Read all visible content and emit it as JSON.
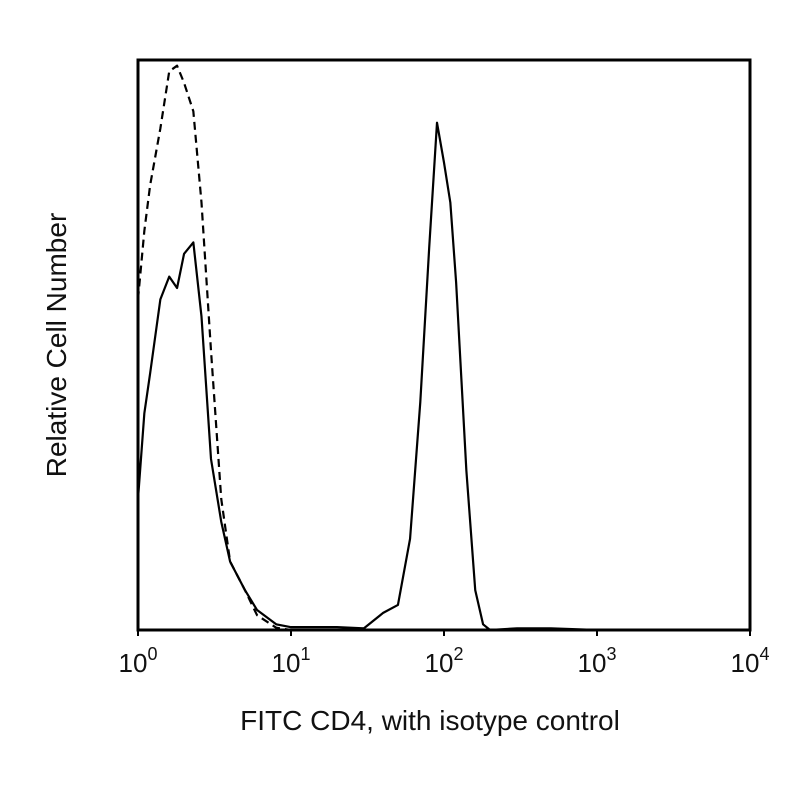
{
  "chart_data": {
    "type": "line",
    "x_label": "FITC CD4, with isotype control",
    "y_label": "Relative Cell Number",
    "x_scale": "log",
    "x": [
      1,
      1.1,
      1.2,
      1.4,
      1.6,
      1.8,
      2,
      2.3,
      2.6,
      3,
      3.5,
      4,
      5,
      6,
      8,
      10,
      15,
      20,
      30,
      40,
      50,
      60,
      70,
      80,
      90,
      100,
      110,
      120,
      140,
      160,
      180,
      200,
      300,
      500,
      1000,
      10000
    ],
    "series": [
      {
        "name": "CD4",
        "color": "#000000",
        "style": "solid",
        "values": [
          23,
          38,
          45,
          58,
          62,
          60,
          66,
          68,
          55,
          30,
          19,
          12,
          7,
          3.5,
          1,
          0.5,
          0.5,
          0.5,
          0.3,
          3,
          4.4,
          16,
          40,
          67,
          89,
          82,
          75,
          61,
          28,
          7,
          1,
          0,
          0.3,
          0.3,
          0,
          0
        ]
      },
      {
        "name": "isotype control",
        "color": "#000000",
        "style": "dash",
        "values": [
          58,
          70,
          78,
          88,
          98,
          99,
          96,
          91,
          75,
          49,
          23,
          12,
          7,
          2.6,
          0.4,
          0,
          0,
          0,
          0,
          0,
          0,
          0,
          0,
          0,
          0,
          0,
          0,
          0,
          0,
          0,
          0,
          0,
          0,
          0,
          0,
          0
        ]
      }
    ],
    "xlim": [
      1,
      10000
    ],
    "ylim": [
      0,
      100
    ],
    "xticks": [
      {
        "value": 1,
        "label": "10",
        "exponent": "0"
      },
      {
        "value": 10,
        "label": "10",
        "exponent": "1"
      },
      {
        "value": 100,
        "label": "10",
        "exponent": "2"
      },
      {
        "value": 1000,
        "label": "10",
        "exponent": "3"
      },
      {
        "value": 10000,
        "label": "10",
        "exponent": "4"
      }
    ],
    "grid": false
  }
}
